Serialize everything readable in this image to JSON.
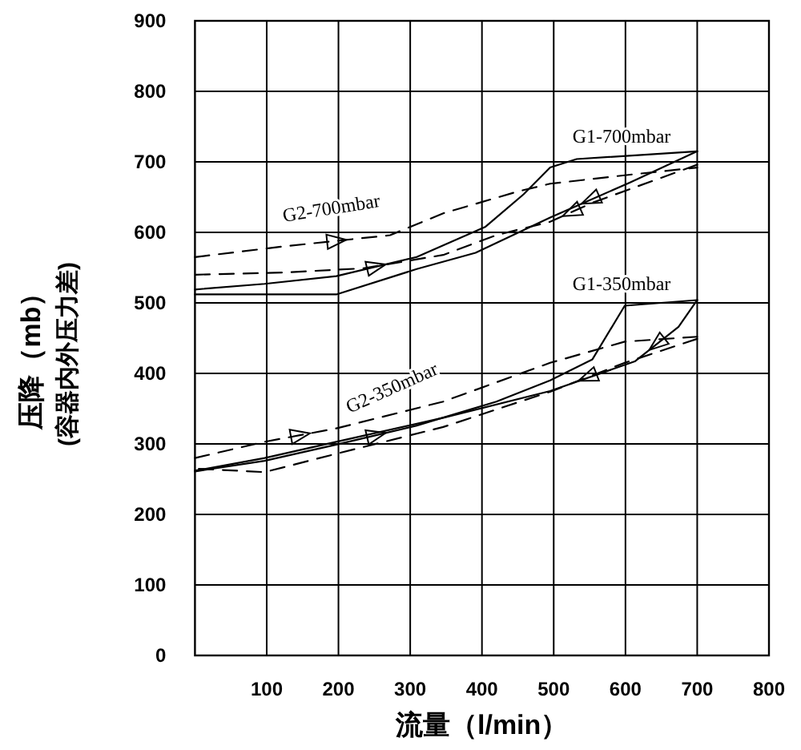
{
  "chart_data": {
    "type": "line",
    "xlabel": "流量（l/min）",
    "ylabel": "压降（mb）\n(容器内外压力差)",
    "xlim": [
      0,
      800
    ],
    "ylim": [
      0,
      900
    ],
    "xticks": [
      100,
      200,
      300,
      400,
      500,
      600,
      700,
      800
    ],
    "yticks": [
      0,
      100,
      200,
      300,
      400,
      500,
      600,
      700,
      800,
      900
    ],
    "grid": true,
    "series": [
      {
        "color": "#000000",
        "line_style": "solid",
        "x": [
          0,
          97,
          197,
          309,
          405,
          458,
          495,
          532,
          700
        ],
        "values": [
          519,
          527,
          538,
          565,
          608,
          654,
          692,
          704,
          715
        ]
      },
      {
        "color": "#000000",
        "line_style": "solid",
        "x": [
          700,
          607,
          495,
          391,
          309,
          197,
          0
        ],
        "values": [
          715,
          671,
          621,
          571,
          548,
          512,
          512
        ]
      },
      {
        "color": "#000000",
        "line_style": "dashed",
        "x": [
          0,
          123,
          272,
          346,
          450,
          495,
          599,
          700
        ],
        "values": [
          565,
          580,
          596,
          627,
          658,
          669,
          681,
          692
        ]
      },
      {
        "color": "#000000",
        "line_style": "dashed",
        "x": [
          700,
          554,
          495,
          420,
          346,
          234,
          123,
          0
        ],
        "values": [
          696,
          642,
          615,
          596,
          568,
          549,
          543,
          540
        ]
      },
      {
        "color": "#000000",
        "line_style": "solid",
        "x": [
          0,
          97,
          197,
          309,
          420,
          495,
          554,
          599,
          700
        ],
        "values": [
          261,
          276,
          299,
          326,
          360,
          390,
          420,
          496,
          504
        ]
      },
      {
        "color": "#000000",
        "line_style": "solid",
        "x": [
          700,
          674,
          613,
          495,
          346,
          197,
          97,
          0
        ],
        "values": [
          504,
          466,
          417,
          375,
          337,
          303,
          280,
          262
        ]
      },
      {
        "color": "#000000",
        "line_style": "dashed",
        "x": [
          0,
          97,
          197,
          346,
          495,
          599,
          700
        ],
        "values": [
          280,
          303,
          322,
          360,
          415,
          445,
          452
        ]
      },
      {
        "color": "#000000",
        "line_style": "dashed",
        "x": [
          700,
          599,
          495,
          346,
          197,
          97,
          0
        ],
        "values": [
          449,
          415,
          374,
          324,
          286,
          260,
          265
        ]
      }
    ],
    "annotations": [
      "G1-700mbar",
      "G2-700mbar",
      "G1-350mbar",
      "G2-350mbar"
    ]
  }
}
